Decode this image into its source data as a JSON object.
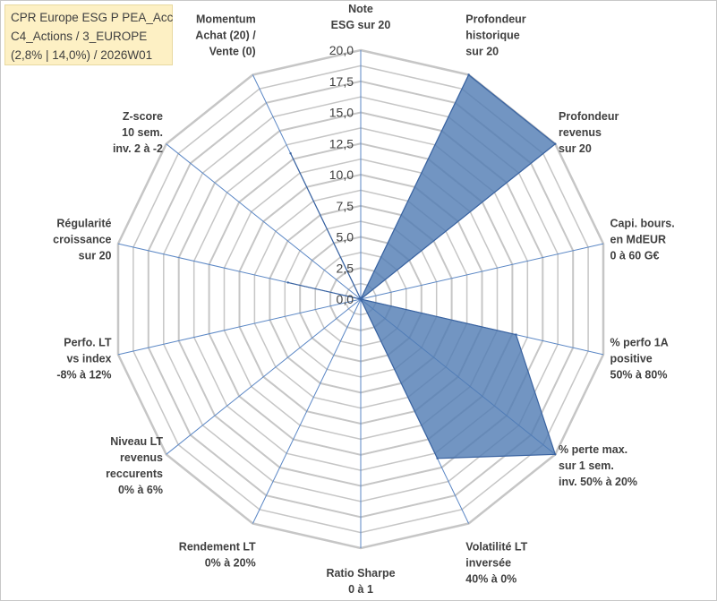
{
  "title_box": {
    "line1": "CPR Europe ESG P PEA_Acc",
    "line2": "C4_Actions / 3_EUROPE",
    "line3": "(2,8% | 14,0%) / 2026W01"
  },
  "colors": {
    "series_fill": "#4f7bb3",
    "series_stroke": "#3a63a0",
    "grid": "#c6c6c6",
    "spoke": "#5b87c5",
    "text": "#404040",
    "title_bg": "#fdf0c4"
  },
  "chart_data": {
    "type": "radar",
    "grid": true,
    "rmax": 20,
    "ticks": [
      "0,0",
      "2,5",
      "5,0",
      "7,5",
      "10,0",
      "12,5",
      "15,0",
      "17,5",
      "20,0"
    ],
    "categories": [
      [
        "Note",
        "ESG sur 20"
      ],
      [
        "Profondeur",
        "historique",
        "sur 20"
      ],
      [
        "Profondeur",
        "revenus",
        "sur 20"
      ],
      [
        "Capi. bours.",
        "en MdEUR",
        "0 à 60 G€"
      ],
      [
        "% perfo 1A",
        "positive",
        "50% à 80%"
      ],
      [
        "% perte max.",
        "sur 1 sem.",
        "inv. 50% à 20%"
      ],
      [
        "Volatilité LT",
        "inversée",
        "40% à 0%"
      ],
      [
        "Ratio Sharpe",
        "0 à 1"
      ],
      [
        "Rendement LT",
        "0% à 20%"
      ],
      [
        "Niveau LT",
        "revenus",
        "reccurents",
        "0% à 6%"
      ],
      [
        "Perfo. LT",
        "vs index",
        "-8% à 12%"
      ],
      [
        "Régularité",
        "croissance",
        "sur 20"
      ],
      [
        "Z-score",
        "10 sem.",
        "inv. 2 à -2"
      ],
      [
        "Momentum",
        "Achat (20) /",
        "Vente (0)"
      ]
    ],
    "values": [
      0,
      20,
      20,
      0,
      12.8,
      20,
      14.2,
      0,
      0,
      0,
      0,
      6,
      0,
      13
    ]
  }
}
